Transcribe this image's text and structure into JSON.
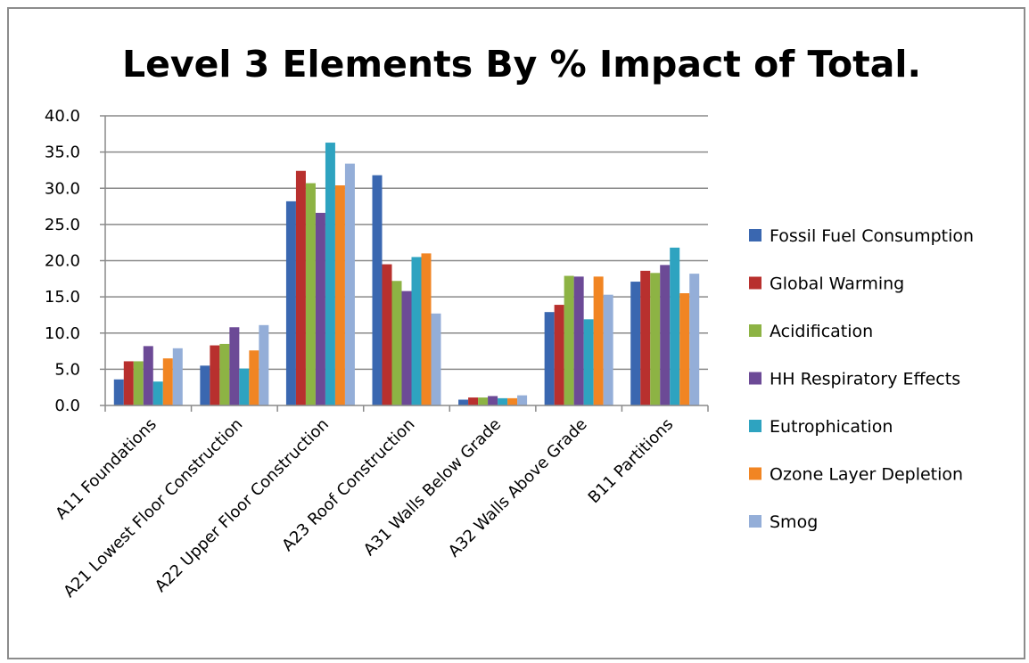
{
  "chart_data": {
    "type": "bar",
    "title": "Level 3 Elements By % Impact of Total.",
    "xlabel": "",
    "ylabel": "",
    "ylim": [
      0,
      40
    ],
    "ytick_labels": [
      "0.0",
      "5.0",
      "10.0",
      "15.0",
      "20.0",
      "25.0",
      "30.0",
      "35.0",
      "40.0"
    ],
    "grid": true,
    "legend_position": "right",
    "categories": [
      "A11 Foundations",
      "A21 Lowest Floor Construction",
      "A22 Upper Floor Construction",
      "A23 Roof Construction",
      "A31 Walls Below Grade",
      "A32 Walls Above Grade",
      "B11 Partitions"
    ],
    "series": [
      {
        "name": "Fossil Fuel Consumption",
        "color": "#3a67b0",
        "values": [
          3.6,
          5.5,
          28.2,
          31.8,
          0.8,
          12.9,
          17.1
        ]
      },
      {
        "name": "Global Warming",
        "color": "#b8302e",
        "values": [
          6.1,
          8.3,
          32.4,
          19.5,
          1.1,
          13.9,
          18.6
        ]
      },
      {
        "name": "Acidification",
        "color": "#8db344",
        "values": [
          6.1,
          8.5,
          30.7,
          17.2,
          1.1,
          17.9,
          18.3
        ]
      },
      {
        "name": "HH Respiratory Effects",
        "color": "#6c4a96",
        "values": [
          8.2,
          10.8,
          26.6,
          15.8,
          1.3,
          17.8,
          19.4
        ]
      },
      {
        "name": "Eutrophication",
        "color": "#2ea3c0",
        "values": [
          3.3,
          5.1,
          36.3,
          20.5,
          1.0,
          11.9,
          21.8
        ]
      },
      {
        "name": "Ozone Layer Depletion",
        "color": "#f18523",
        "values": [
          6.5,
          7.6,
          30.4,
          21.0,
          1.0,
          17.8,
          15.5
        ]
      },
      {
        "name": "Smog",
        "color": "#94aed8",
        "values": [
          7.9,
          11.1,
          33.4,
          12.7,
          1.4,
          15.3,
          18.2
        ]
      }
    ]
  }
}
